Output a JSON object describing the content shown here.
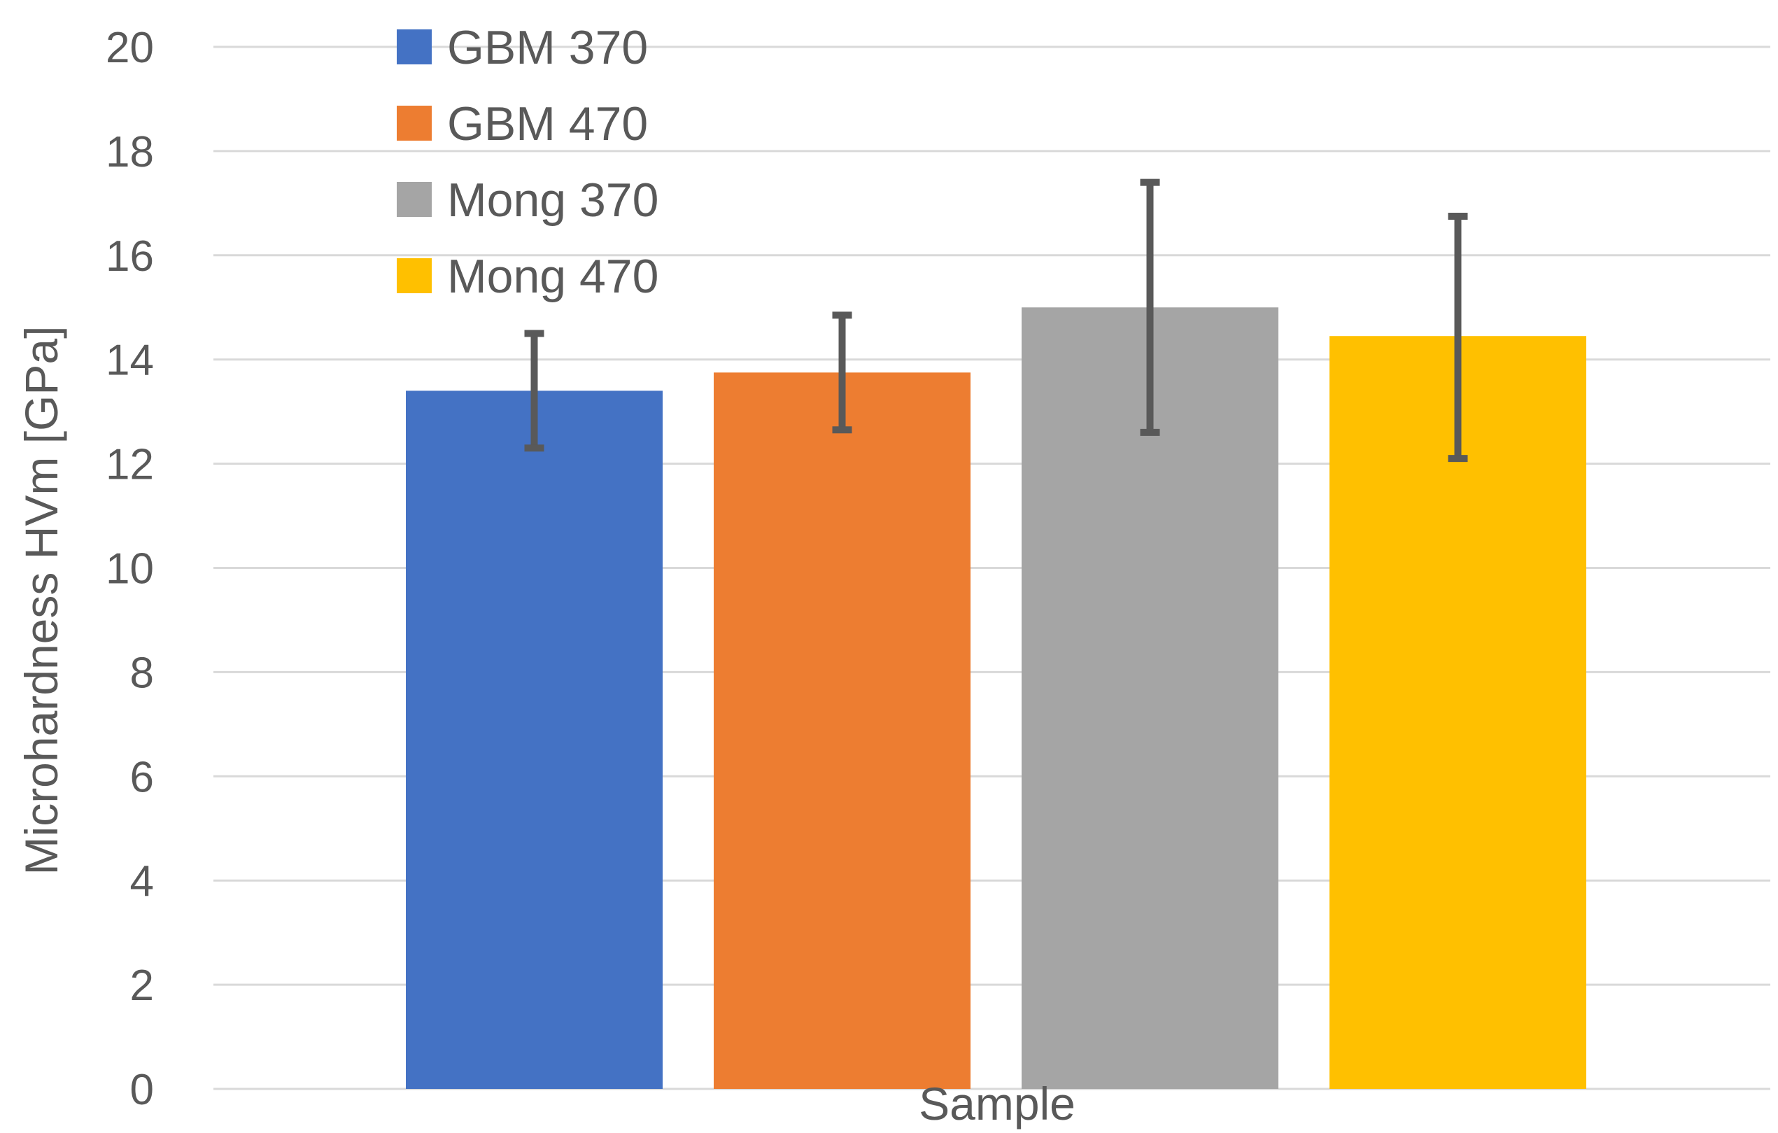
{
  "chart_data": {
    "type": "bar",
    "title": "",
    "xlabel": "Sample",
    "ylabel": "Microhardness HVm [GPa]",
    "ylim": [
      0,
      20
    ],
    "yticks": [
      0,
      2,
      4,
      6,
      8,
      10,
      12,
      14,
      16,
      18,
      20
    ],
    "grid": true,
    "legend_position": "top-left",
    "series": [
      {
        "name": "GBM 370",
        "value": 13.4,
        "error_low": 12.3,
        "error_high": 14.5,
        "color": "#4472C4"
      },
      {
        "name": "GBM 470",
        "value": 13.75,
        "error_low": 12.65,
        "error_high": 14.85,
        "color": "#ED7D31"
      },
      {
        "name": "Mong 370",
        "value": 15.0,
        "error_low": 12.6,
        "error_high": 17.4,
        "color": "#A5A5A5"
      },
      {
        "name": "Mong 470",
        "value": 14.45,
        "error_low": 12.1,
        "error_high": 16.75,
        "color": "#FFC000"
      }
    ],
    "gridline_color": "#D9D9D9",
    "errorbar_color": "#595959"
  }
}
